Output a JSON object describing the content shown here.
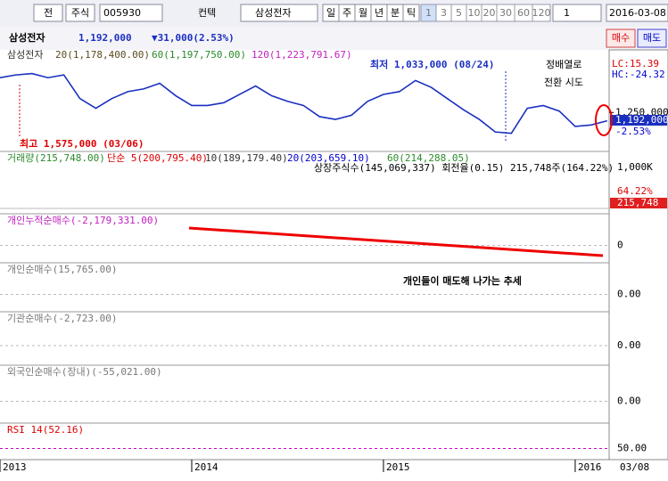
{
  "toolbar": {
    "items": [
      "전",
      "주식"
    ],
    "code": "005930",
    "tool": "컨텍",
    "stock": "삼성전자",
    "periods": [
      "일",
      "주",
      "월",
      "년",
      "분",
      "틱"
    ],
    "intervals": [
      "1",
      "3",
      "5",
      "10",
      "20",
      "30",
      "60",
      "120"
    ],
    "count": "1",
    "date": "2016-03-08"
  },
  "header": {
    "name": "삼성전자",
    "price": "1,192,000",
    "change": "▼31,000(2.53%)",
    "buy": "매수",
    "sell": "매도"
  },
  "chart_data": {
    "type": "line",
    "x": [
      2013.0,
      2013.083,
      2013.167,
      2013.25,
      2013.333,
      2013.417,
      2013.5,
      2013.583,
      2013.667,
      2013.75,
      2013.833,
      2013.917,
      2014.0,
      2014.083,
      2014.167,
      2014.25,
      2014.333,
      2014.417,
      2014.5,
      2014.583,
      2014.667,
      2014.75,
      2014.833,
      2014.917,
      2015.0,
      2015.083,
      2015.167,
      2015.25,
      2015.333,
      2015.417,
      2015.5,
      2015.583,
      2015.667,
      2015.75,
      2015.833,
      2015.917,
      2016.0,
      2016.083,
      2016.167
    ],
    "series": [
      {
        "name": "삼성전자",
        "color": "#1a2fc0",
        "values": [
          1500000,
          1520000,
          1530000,
          1500000,
          1520000,
          1350000,
          1280000,
          1350000,
          1400000,
          1420000,
          1460000,
          1370000,
          1300000,
          1300000,
          1320000,
          1380000,
          1440000,
          1370000,
          1330000,
          1300000,
          1220000,
          1200000,
          1230000,
          1330000,
          1380000,
          1400000,
          1480000,
          1430000,
          1350000,
          1270000,
          1200000,
          1110000,
          1100000,
          1280000,
          1300000,
          1260000,
          1150000,
          1160000,
          1190000
        ]
      }
    ],
    "xlim": [
      2013,
      2016.177
    ],
    "xticks": [
      2013,
      2014,
      2015,
      2016
    ],
    "ylim": [
      970000,
      1700000
    ],
    "yticks": [
      {
        "value": 1250000,
        "label": "1,250,000"
      }
    ],
    "cursor_date": "03/08",
    "legend": [
      "20(1,178,400.00)",
      "60(1,197,750.00)",
      "120(1,223,791.67)"
    ],
    "right_labels": [
      "LC:15.39",
      "HC:-24.32",
      "1,192,000",
      "-2.53%"
    ],
    "annotations": {
      "low": "최저 1,033,000 (08/24)",
      "high": "최고 1,575,000 (03/06)",
      "note1": "정배열로",
      "note2": "전환 시도",
      "trend": "개인들이 매도해 나가는 추세"
    },
    "panels": [
      {
        "title": "거래량(215,748.00)",
        "extra": [
          "단순 5(200,795.40)",
          "10(189,179.40)",
          "20(203,659.10)",
          "60(214,288.05)"
        ],
        "info": "상장주식수(145,069,337) 회전율(0.15) 215,748주(164.22%)",
        "right_labels": [
          "1,000K",
          "64.22%",
          "215,748"
        ]
      },
      {
        "title": "개인누적순매수(-2,179,331.00)",
        "right_labels": [
          "0"
        ]
      },
      {
        "title": "개인순매수(15,765.00)",
        "right_labels": [
          "0.00"
        ]
      },
      {
        "title": "기관순매수(-2,723.00)",
        "right_labels": [
          "0.00"
        ]
      },
      {
        "title": "외국인순매수(장내)(-55,021.00)",
        "right_labels": [
          "0.00"
        ]
      },
      {
        "title": "RSI 14(52.16)",
        "right_labels": [
          "50.00"
        ]
      }
    ]
  }
}
